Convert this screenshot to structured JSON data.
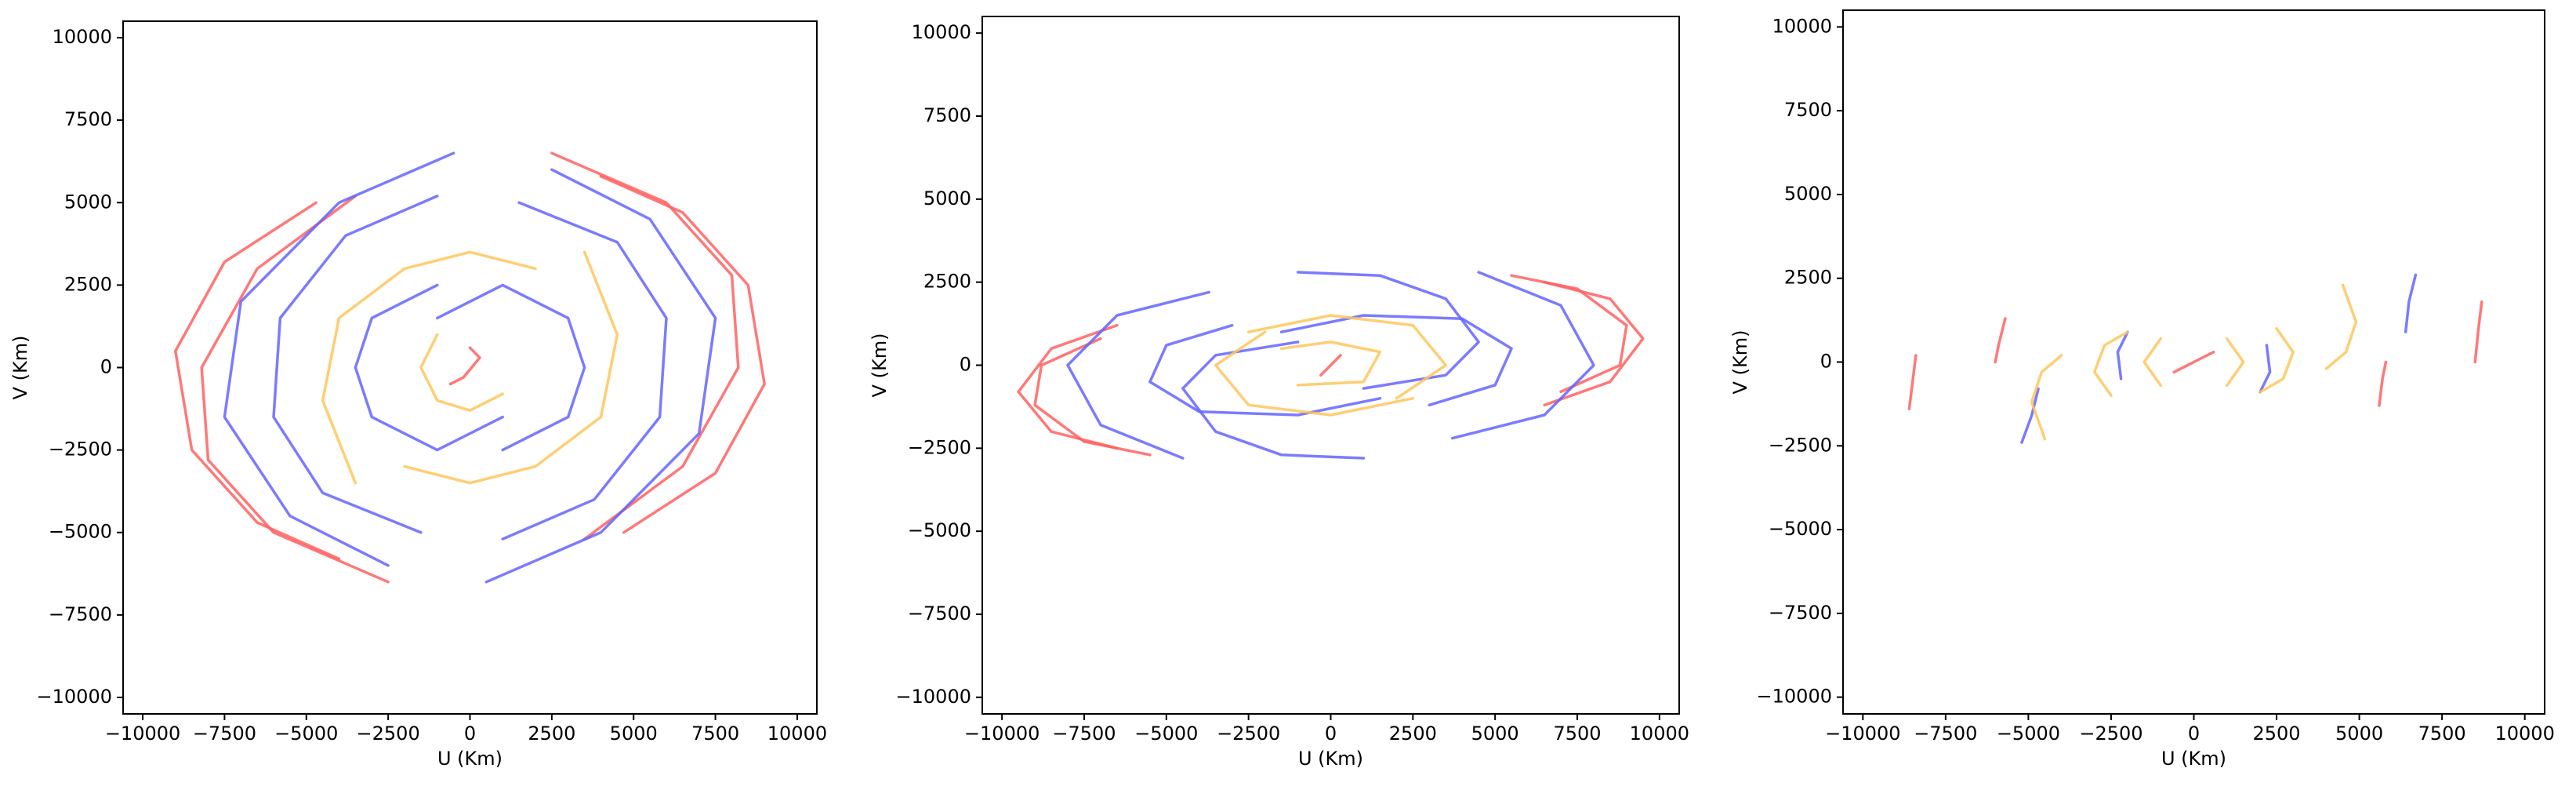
{
  "chart_data": [
    {
      "type": "line",
      "xlabel": "U (Km)",
      "ylabel": "V (Km)",
      "xlim": [
        -10600,
        10600
      ],
      "ylim": [
        -10500,
        10500
      ],
      "xticks": [
        {
          "value": -10000,
          "label": "−10000"
        },
        {
          "value": -7500,
          "label": "−7500"
        },
        {
          "value": -5000,
          "label": "−5000"
        },
        {
          "value": -2500,
          "label": "−2500"
        },
        0,
        2500,
        5000,
        7500,
        10000
      ],
      "yticks": [
        {
          "value": -10000,
          "label": "−10000"
        },
        {
          "value": -7500,
          "label": "−7500"
        },
        {
          "value": -5000,
          "label": "−5000"
        },
        {
          "value": -2500,
          "label": "−2500"
        },
        0,
        2500,
        5000,
        7500,
        10000
      ],
      "series": [
        {
          "color": "#ff6060",
          "x": [
            -4700,
            -7500,
            -9000,
            -8500,
            -6500,
            -4000
          ],
          "values": [
            5000,
            3200,
            500,
            -2500,
            -4700,
            -5800
          ]
        },
        {
          "color": "#ff6060",
          "x": [
            4700,
            7500,
            9000,
            8500,
            6500,
            4000
          ],
          "values": [
            -5000,
            -3200,
            -500,
            2500,
            4700,
            5800
          ]
        },
        {
          "color": "#ff6060",
          "x": [
            -3500,
            -6500,
            -8200,
            -8000,
            -6000,
            -2500
          ],
          "values": [
            5200,
            3000,
            0,
            -2800,
            -5000,
            -6500
          ]
        },
        {
          "color": "#ff6060",
          "x": [
            3500,
            6500,
            8200,
            8000,
            6000,
            2500
          ],
          "values": [
            -5200,
            -3000,
            0,
            2800,
            5000,
            6500
          ]
        },
        {
          "color": "#ff6060",
          "x": [
            -600,
            -200,
            300,
            0
          ],
          "values": [
            -500,
            -300,
            300,
            600
          ]
        },
        {
          "color": "#6464ff",
          "x": [
            -500,
            -4000,
            -7000,
            -7500,
            -5500,
            -2500
          ],
          "values": [
            6500,
            5000,
            2000,
            -1500,
            -4500,
            -6000
          ]
        },
        {
          "color": "#6464ff",
          "x": [
            500,
            4000,
            7000,
            7500,
            5500,
            2500
          ],
          "values": [
            -6500,
            -5000,
            -2000,
            1500,
            4500,
            6000
          ]
        },
        {
          "color": "#6464ff",
          "x": [
            -1000,
            -3800,
            -5800,
            -6000,
            -4500,
            -1500
          ],
          "values": [
            5200,
            4000,
            1500,
            -1500,
            -3800,
            -5000
          ]
        },
        {
          "color": "#6464ff",
          "x": [
            1000,
            3800,
            5800,
            6000,
            4500,
            1500
          ],
          "values": [
            -5200,
            -4000,
            -1500,
            1500,
            3800,
            5000
          ]
        },
        {
          "color": "#6464ff",
          "x": [
            -1000,
            -3000,
            -3500,
            -3000,
            -1000,
            1000
          ],
          "values": [
            2500,
            1500,
            0,
            -1500,
            -2500,
            -1500
          ]
        },
        {
          "color": "#6464ff",
          "x": [
            1000,
            3000,
            3500,
            3000,
            1000,
            -1000
          ],
          "values": [
            -2500,
            -1500,
            0,
            1500,
            2500,
            1500
          ]
        },
        {
          "color": "#ffc65a",
          "x": [
            -3500,
            -4500,
            -4000,
            -2000,
            0,
            2000
          ],
          "values": [
            -3500,
            -1000,
            1500,
            3000,
            3500,
            3000
          ]
        },
        {
          "color": "#ffc65a",
          "x": [
            3500,
            4500,
            4000,
            2000,
            0,
            -2000
          ],
          "values": [
            3500,
            1000,
            -1500,
            -3000,
            -3500,
            -3000
          ]
        },
        {
          "color": "#ffc65a",
          "x": [
            -1000,
            -1500,
            -1000,
            0,
            1000
          ],
          "values": [
            1000,
            0,
            -1000,
            -1300,
            -800
          ]
        }
      ]
    },
    {
      "type": "line",
      "xlabel": "U (Km)",
      "ylabel": "V (Km)",
      "xlim": [
        -10600,
        10600
      ],
      "ylim": [
        -10500,
        10500
      ],
      "xticks": [
        {
          "value": -10000,
          "label": "−10000"
        },
        {
          "value": -7500,
          "label": "−7500"
        },
        {
          "value": -5000,
          "label": "−5000"
        },
        {
          "value": -2500,
          "label": "−2500"
        },
        0,
        2500,
        5000,
        7500,
        10000
      ],
      "yticks": [
        {
          "value": -10000,
          "label": "−10000"
        },
        {
          "value": -7500,
          "label": "−7500"
        },
        {
          "value": -5000,
          "label": "−5000"
        },
        {
          "value": -2500,
          "label": "−2500"
        },
        0,
        2500,
        5000,
        7500,
        10000
      ],
      "series": [
        {
          "color": "#ff6060",
          "x": [
            -6500,
            -8500,
            -9500,
            -8500,
            -6500
          ],
          "values": [
            1200,
            500,
            -800,
            -2000,
            -2500
          ]
        },
        {
          "color": "#ff6060",
          "x": [
            6500,
            8500,
            9500,
            8500,
            6500
          ],
          "values": [
            -1200,
            -500,
            800,
            2000,
            2500
          ]
        },
        {
          "color": "#ff6060",
          "x": [
            -7000,
            -8800,
            -9000,
            -7500,
            -5500
          ],
          "values": [
            800,
            0,
            -1200,
            -2300,
            -2700
          ]
        },
        {
          "color": "#ff6060",
          "x": [
            7000,
            8800,
            9000,
            7500,
            5500
          ],
          "values": [
            -800,
            0,
            1200,
            2300,
            2700
          ]
        },
        {
          "color": "#6464ff",
          "x": [
            -3700,
            -6500,
            -8000,
            -7000,
            -4500
          ],
          "values": [
            2200,
            1500,
            0,
            -1800,
            -2800
          ]
        },
        {
          "color": "#6464ff",
          "x": [
            3700,
            6500,
            8000,
            7000,
            4500
          ],
          "values": [
            -2200,
            -1500,
            0,
            1800,
            2800
          ]
        },
        {
          "color": "#6464ff",
          "x": [
            -3000,
            -5000,
            -5500,
            -4000,
            -1000,
            1500
          ],
          "values": [
            1200,
            600,
            -500,
            -1400,
            -1500,
            -1000
          ]
        },
        {
          "color": "#6464ff",
          "x": [
            3000,
            5000,
            5500,
            4000,
            1000,
            -1500
          ],
          "values": [
            -1200,
            -600,
            500,
            1400,
            1500,
            1000
          ]
        },
        {
          "color": "#6464ff",
          "x": [
            -1000,
            1500,
            3500,
            4500,
            3500,
            1000
          ],
          "values": [
            2800,
            2700,
            2000,
            700,
            -300,
            -700
          ]
        },
        {
          "color": "#6464ff",
          "x": [
            1000,
            -1500,
            -3500,
            -4500,
            -3500,
            -1000
          ],
          "values": [
            -2800,
            -2700,
            -2000,
            -700,
            300,
            700
          ]
        },
        {
          "color": "#ffc65a",
          "x": [
            -2000,
            -3500,
            -2500,
            0,
            2500
          ],
          "values": [
            1000,
            0,
            -1200,
            -1500,
            -1000
          ]
        },
        {
          "color": "#ffc65a",
          "x": [
            2000,
            3500,
            2500,
            0,
            -2500
          ],
          "values": [
            -1000,
            0,
            1200,
            1500,
            1000
          ]
        },
        {
          "color": "#ffc65a",
          "x": [
            -1500,
            0,
            1500,
            1000,
            -1000
          ],
          "values": [
            500,
            700,
            400,
            -500,
            -600
          ]
        },
        {
          "color": "#ff6060",
          "x": [
            -300,
            0,
            300
          ],
          "values": [
            -300,
            0,
            300
          ]
        }
      ]
    },
    {
      "type": "line",
      "xlabel": "U (Km)",
      "ylabel": "V (Km)",
      "xlim": [
        -10600,
        10600
      ],
      "ylim": [
        -10500,
        10500
      ],
      "xticks": [
        {
          "value": -10000,
          "label": "−10000"
        },
        {
          "value": -7500,
          "label": "−7500"
        },
        {
          "value": -5000,
          "label": "−5000"
        },
        {
          "value": -2500,
          "label": "−2500"
        },
        0,
        2500,
        5000,
        7500,
        10000
      ],
      "yticks": [
        {
          "value": -10000,
          "label": "−10000"
        },
        {
          "value": -7500,
          "label": "−7500"
        },
        {
          "value": -5000,
          "label": "−5000"
        },
        {
          "value": -2500,
          "label": "−2500"
        },
        0,
        2500,
        5000,
        7500,
        10000
      ],
      "series": [
        {
          "color": "#ff6060",
          "x": [
            -8400,
            -8500,
            -8600
          ],
          "values": [
            200,
            -600,
            -1400
          ]
        },
        {
          "color": "#ff6060",
          "x": [
            -5700,
            -5900,
            -6000
          ],
          "values": [
            1300,
            500,
            0
          ]
        },
        {
          "color": "#ff6060",
          "x": [
            8700,
            8600,
            8500
          ],
          "values": [
            1800,
            1000,
            0
          ]
        },
        {
          "color": "#ff6060",
          "x": [
            5600,
            5700,
            5800
          ],
          "values": [
            -1300,
            -500,
            0
          ]
        },
        {
          "color": "#ff6060",
          "x": [
            -600,
            0,
            600
          ],
          "values": [
            -300,
            0,
            300
          ]
        },
        {
          "color": "#6464ff",
          "x": [
            -4700,
            -4900,
            -5200
          ],
          "values": [
            -800,
            -1600,
            -2400
          ]
        },
        {
          "color": "#6464ff",
          "x": [
            -2000,
            -2300,
            -2200
          ],
          "values": [
            900,
            300,
            -500
          ]
        },
        {
          "color": "#6464ff",
          "x": [
            2000,
            2300,
            2200
          ],
          "values": [
            -900,
            -300,
            500
          ]
        },
        {
          "color": "#6464ff",
          "x": [
            6700,
            6500,
            6400
          ],
          "values": [
            2600,
            1800,
            900
          ]
        },
        {
          "color": "#ffc65a",
          "x": [
            -4500,
            -4900,
            -4600,
            -4000
          ],
          "values": [
            -2300,
            -1200,
            -300,
            200
          ]
        },
        {
          "color": "#ffc65a",
          "x": [
            4500,
            4900,
            4600,
            4000
          ],
          "values": [
            2300,
            1200,
            300,
            -200
          ]
        },
        {
          "color": "#ffc65a",
          "x": [
            -2500,
            -3000,
            -2700,
            -2000
          ],
          "values": [
            -1000,
            -300,
            500,
            900
          ]
        },
        {
          "color": "#ffc65a",
          "x": [
            2500,
            3000,
            2700,
            2000
          ],
          "values": [
            1000,
            300,
            -500,
            -900
          ]
        },
        {
          "color": "#ffc65a",
          "x": [
            -1000,
            -1500,
            -1000
          ],
          "values": [
            700,
            0,
            -700
          ]
        },
        {
          "color": "#ffc65a",
          "x": [
            1000,
            1500,
            1000
          ],
          "values": [
            -700,
            0,
            700
          ]
        }
      ]
    }
  ]
}
